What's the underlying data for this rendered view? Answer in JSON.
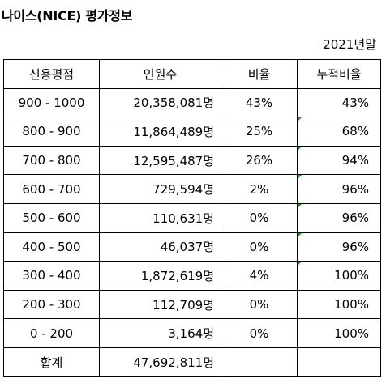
{
  "title": "나이스(NICE) 평가정보",
  "note": "2021년말",
  "colors": {
    "flag": "#2e8b3a"
  },
  "headers": [
    "신용평점",
    "인원수",
    "비율",
    "누적비율"
  ],
  "rows": [
    {
      "range": "900 - 1000",
      "count": "20,358,081명",
      "ratio": "43%",
      "cumulative": "43%",
      "flag": false
    },
    {
      "range": "800 - 900",
      "count": "11,864,489명",
      "ratio": "25%",
      "cumulative": "68%",
      "flag": true
    },
    {
      "range": "700 - 800",
      "count": "12,595,487명",
      "ratio": "26%",
      "cumulative": "94%",
      "flag": true
    },
    {
      "range": "600 - 700",
      "count": "729,594명",
      "ratio": "2%",
      "cumulative": "96%",
      "flag": true
    },
    {
      "range": "500 - 600",
      "count": "110,631명",
      "ratio": "0%",
      "cumulative": "96%",
      "flag": true
    },
    {
      "range": "400 - 500",
      "count": "46,037명",
      "ratio": "0%",
      "cumulative": "96%",
      "flag": true
    },
    {
      "range": "300 - 400",
      "count": "1,872,619명",
      "ratio": "4%",
      "cumulative": "100%",
      "flag": true
    },
    {
      "range": "200 - 300",
      "count": "112,709명",
      "ratio": "0%",
      "cumulative": "100%",
      "flag": false
    },
    {
      "range": "0 - 200",
      "count": "3,164명",
      "ratio": "0%",
      "cumulative": "100%",
      "flag": false
    }
  ],
  "total": {
    "label": "합계",
    "count": "47,692,811명",
    "ratio": "",
    "cumulative": ""
  }
}
